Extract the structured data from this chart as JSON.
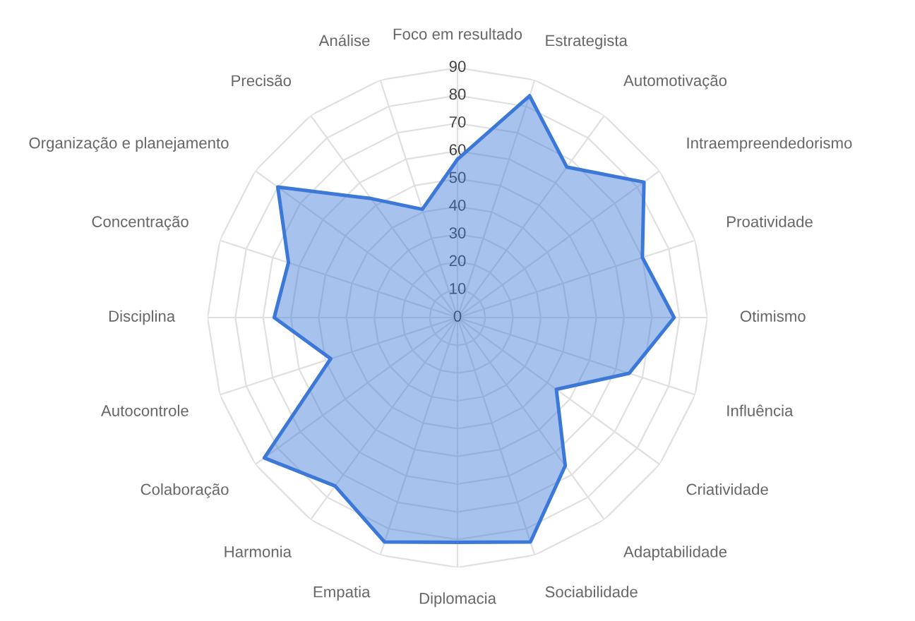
{
  "chart_data": {
    "type": "radar",
    "categories": [
      "Foco em resultado",
      "Estrategista",
      "Automotivação",
      "Intraempreendedorismo",
      "Proatividade",
      "Otimismo",
      "Influência",
      "Criatividade",
      "Adaptabilidade",
      "Sociabilidade",
      "Diplomacia",
      "Empatia",
      "Harmonia",
      "Colaboração",
      "Autocontrole",
      "Disciplina",
      "Concentração",
      "Organização e planejamento",
      "Precisão",
      "Análise"
    ],
    "series": [
      {
        "color": "#3c78d8",
        "values": [
          57,
          84,
          67,
          83,
          70,
          78,
          65,
          44,
          66,
          85,
          81,
          85,
          75,
          86,
          48,
          66,
          64,
          80,
          53,
          41
        ]
      }
    ],
    "ylim": [
      0,
      90
    ],
    "yticks": [
      0,
      10,
      20,
      30,
      40,
      50,
      60,
      70,
      80,
      90
    ],
    "grid": true,
    "marker": "none"
  }
}
